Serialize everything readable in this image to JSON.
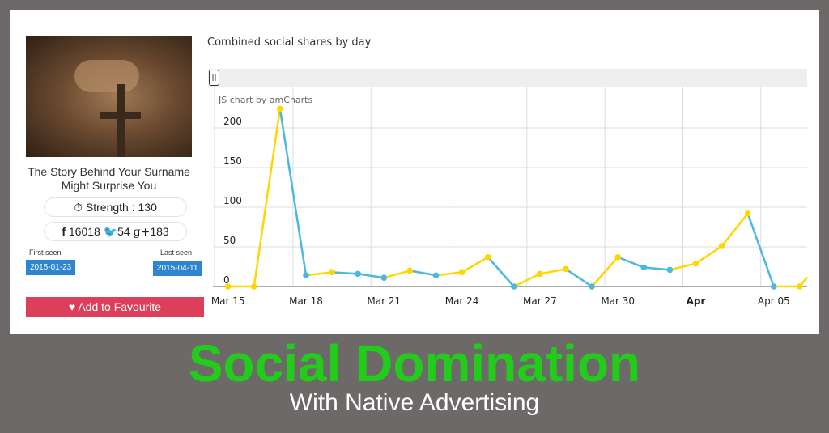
{
  "article": {
    "title": "The Story Behind Your Surname Might Surprise You",
    "strength_label": "Strength : 130",
    "facebook": "16018",
    "twitter": "54",
    "gplus": "183",
    "first_seen_label": "First seen",
    "first_seen": "2015-01-23",
    "last_seen_label": "Last seen",
    "last_seen": "2015-04-11",
    "favourite_label": "Add to Favourite"
  },
  "banner": {
    "headline": "Social Domination",
    "subline": "With Native Advertising"
  },
  "colors": {
    "rise": "#ffd700",
    "fall": "#4ab8e0",
    "headline": "#22cc1a",
    "badge": "#2f86d0",
    "favourite": "#dc3f5a"
  },
  "chart_data": {
    "type": "line",
    "title": "Combined social shares by day",
    "credit": "JS chart by amCharts",
    "x": [
      "Mar 15",
      "Mar 16",
      "Mar 17",
      "Mar 18",
      "Mar 19",
      "Mar 20",
      "Mar 21",
      "Mar 22",
      "Mar 23",
      "Mar 24",
      "Mar 25",
      "Mar 26",
      "Mar 27",
      "Mar 28",
      "Mar 29",
      "Mar 30",
      "Mar 31",
      "Apr 01",
      "Apr 02",
      "Apr 03",
      "Apr 04",
      "Apr 05",
      "Apr 06"
    ],
    "values": [
      0,
      0,
      224,
      14,
      18,
      16,
      11,
      20,
      14,
      18,
      37,
      0,
      16,
      22,
      0,
      37,
      24,
      21,
      29,
      51,
      92,
      0,
      0
    ],
    "x_tick_labels": [
      "Mar 15",
      "Mar 18",
      "Mar 21",
      "Mar 24",
      "Mar 27",
      "Mar 30",
      "Apr",
      "Apr 05"
    ],
    "y_ticks": [
      "0",
      "50",
      "100",
      "150",
      "200"
    ],
    "ylim": [
      0,
      250
    ],
    "grid": true,
    "legend": "none"
  }
}
